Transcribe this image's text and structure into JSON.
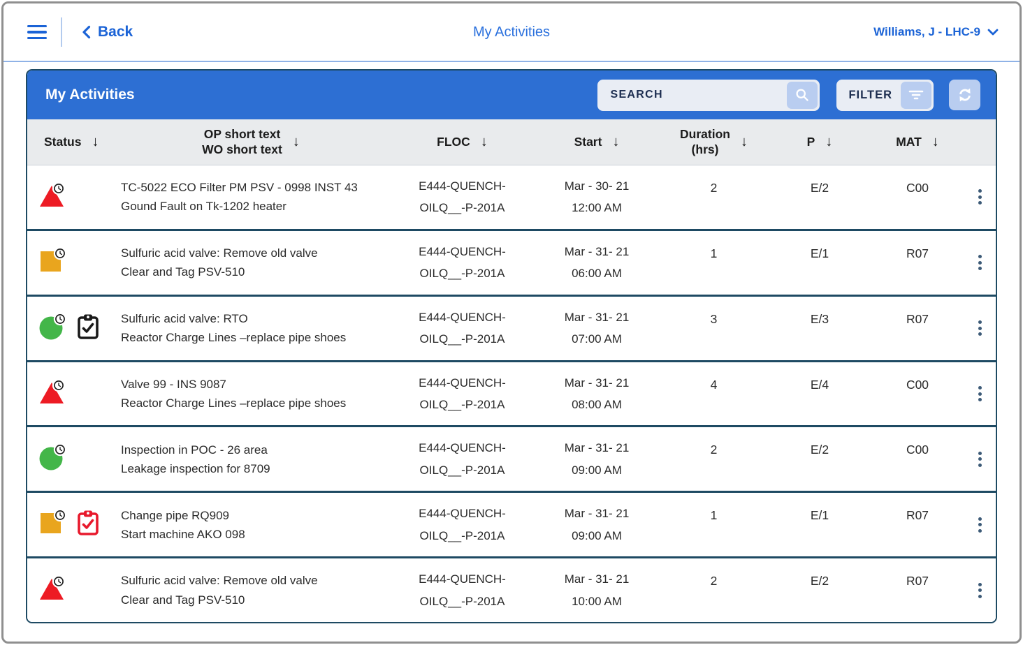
{
  "topbar": {
    "back_label": "Back",
    "title": "My Activities",
    "profile": "Williams, J - LHC-9"
  },
  "panel": {
    "title": "My Activities",
    "search_placeholder": "SEARCH",
    "filter_label": "FILTER"
  },
  "icons": {
    "menu": "hamburger",
    "back": "chevron-left",
    "profile_caret": "chevron-down",
    "search": "magnifier",
    "filter": "filter-lines",
    "refresh": "refresh-arrows",
    "sort_glyph": "↓",
    "row_menu": "kebab-vertical",
    "status_badge": "clock-badge"
  },
  "colors": {
    "accent_blue": "#1b63d6",
    "header_blue": "#2d6fd3",
    "separator_navy": "#1e4a63",
    "status_red": "#ED1B24",
    "status_orange": "#E9A51E",
    "status_green": "#43B649",
    "clipboard_black": "#1a1a1a",
    "clipboard_red": "#E8192C"
  },
  "table": {
    "columns": [
      {
        "key": "status",
        "label_lines": [
          "Status"
        ],
        "sortable": true
      },
      {
        "key": "op",
        "label_lines": [
          "OP short text",
          "WO short text"
        ],
        "sortable": true
      },
      {
        "key": "floc",
        "label_lines": [
          "FLOC"
        ],
        "sortable": true
      },
      {
        "key": "start",
        "label_lines": [
          "Start"
        ],
        "sortable": true
      },
      {
        "key": "duration",
        "label_lines": [
          "Duration",
          "(hrs)"
        ],
        "sortable": true
      },
      {
        "key": "p",
        "label_lines": [
          "P"
        ],
        "sortable": true
      },
      {
        "key": "mat",
        "label_lines": [
          "MAT"
        ],
        "sortable": true
      }
    ],
    "rows": [
      {
        "status_shape": "red-triangle",
        "clipboard": null,
        "op_lines": [
          "TC-5022 ECO Filter PM PSV - 0998 INST 43",
          "Gound Fault on Tk-1202 heater"
        ],
        "floc_lines": [
          "E444-QUENCH-",
          "OILQ__-P-201A"
        ],
        "start_lines": [
          "Mar - 30- 21",
          "12:00 AM"
        ],
        "duration": "2",
        "p": "E/2",
        "mat": "C00"
      },
      {
        "status_shape": "orange-square",
        "clipboard": null,
        "op_lines": [
          "Sulfuric acid valve: Remove old valve",
          "Clear and Tag PSV-510"
        ],
        "floc_lines": [
          "E444-QUENCH-",
          "OILQ__-P-201A"
        ],
        "start_lines": [
          "Mar - 31- 21",
          "06:00 AM"
        ],
        "duration": "1",
        "p": "E/1",
        "mat": "R07"
      },
      {
        "status_shape": "green-circle",
        "clipboard": "black",
        "op_lines": [
          "Sulfuric acid valve: RTO",
          "Reactor Charge Lines –replace pipe shoes"
        ],
        "floc_lines": [
          "E444-QUENCH-",
          "OILQ__-P-201A"
        ],
        "start_lines": [
          "Mar - 31- 21",
          "07:00 AM"
        ],
        "duration": "3",
        "p": "E/3",
        "mat": "R07"
      },
      {
        "status_shape": "red-triangle",
        "clipboard": null,
        "op_lines": [
          "Valve 99 - INS 9087",
          "Reactor Charge Lines –replace pipe shoes"
        ],
        "floc_lines": [
          "E444-QUENCH-",
          "OILQ__-P-201A"
        ],
        "start_lines": [
          "Mar - 31- 21",
          "08:00 AM"
        ],
        "duration": "4",
        "p": "E/4",
        "mat": "C00"
      },
      {
        "status_shape": "green-circle",
        "clipboard": null,
        "op_lines": [
          "Inspection in POC - 26 area",
          "Leakage inspection for 8709"
        ],
        "floc_lines": [
          "E444-QUENCH-",
          "OILQ__-P-201A"
        ],
        "start_lines": [
          "Mar - 31- 21",
          "09:00 AM"
        ],
        "duration": "2",
        "p": "E/2",
        "mat": "C00"
      },
      {
        "status_shape": "orange-square",
        "clipboard": "red",
        "op_lines": [
          "Change pipe RQ909",
          "Start machine AKO 098"
        ],
        "floc_lines": [
          "E444-QUENCH-",
          "OILQ__-P-201A"
        ],
        "start_lines": [
          "Mar - 31- 21",
          "09:00 AM"
        ],
        "duration": "1",
        "p": "E/1",
        "mat": "R07"
      },
      {
        "status_shape": "red-triangle",
        "clipboard": null,
        "op_lines": [
          "Sulfuric acid valve: Remove old valve",
          "Clear and Tag PSV-510"
        ],
        "floc_lines": [
          "E444-QUENCH-",
          "OILQ__-P-201A"
        ],
        "start_lines": [
          "Mar - 31- 21",
          "10:00 AM"
        ],
        "duration": "2",
        "p": "E/2",
        "mat": "R07"
      }
    ]
  }
}
